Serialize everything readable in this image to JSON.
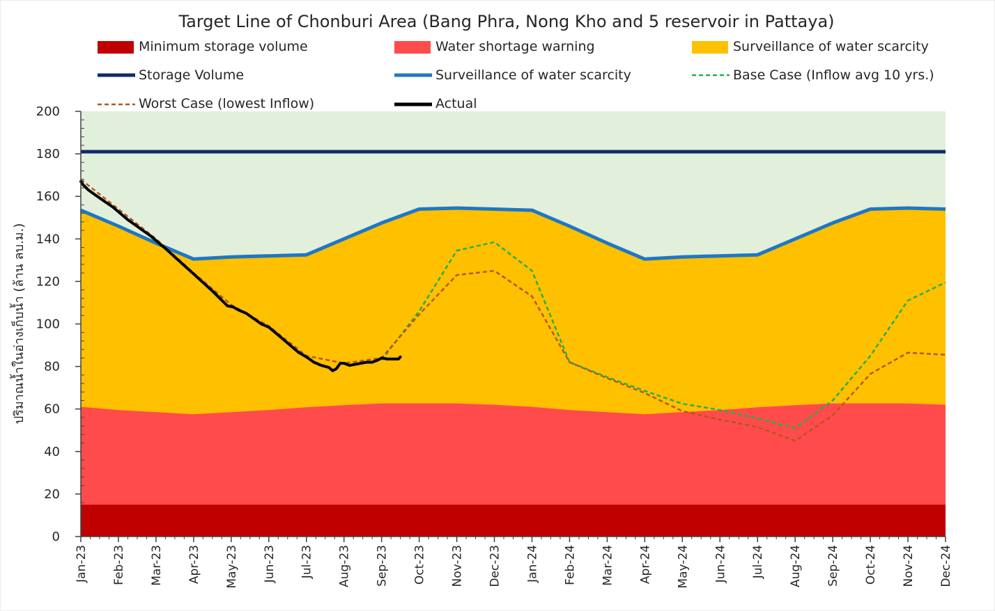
{
  "chart_data": {
    "type": "area",
    "title": "Target Line of Chonburi Area (Bang Phra, Nong Kho and 5 reservoir in Pattaya)",
    "ylabel": "ปริมาณน้ำในอ่างเก็บน้ำ (ล้าน ลบ.ม.)",
    "xlabel": "",
    "ylim": [
      0,
      200
    ],
    "yticks": [
      0,
      20,
      40,
      60,
      80,
      100,
      120,
      140,
      160,
      180,
      200
    ],
    "categories": [
      "Jan-23",
      "Feb-23",
      "Mar-23",
      "Apr-23",
      "May-23",
      "Jun-23",
      "Jul-23",
      "Aug-23",
      "Sep-23",
      "Oct-23",
      "Nov-23",
      "Dec-23",
      "Jan-24",
      "Feb-24",
      "Mar-24",
      "Apr-24",
      "May-24",
      "Jun-24",
      "Jul-24",
      "Aug-24",
      "Sep-24",
      "Oct-24",
      "Nov-24",
      "Dec-24"
    ],
    "legend_placement": "top",
    "colors": {
      "plot_background": "#E2EFDA",
      "minimum": "#C00000",
      "shortage": "#FF4B4B",
      "surveillance_area": "#FFC000",
      "storage_line": "#0D2A6B",
      "surveillance_line": "#1F77C4",
      "base_case": "#22B04A",
      "worst_case": "#B5561E",
      "actual": "#000000"
    },
    "legend": {
      "minimum": "Minimum storage volume",
      "shortage": "Water shortage warning",
      "surveillance_area": "Surveillance of water scarcity",
      "storage_line": "Storage Volume",
      "surveillance_line": "Surveillance of water scarcity",
      "base_case": "Base Case (Inflow avg 10 yrs.)",
      "worst_case": "Worst Case (lowest Inflow)",
      "actual": "Actual"
    },
    "series": [
      {
        "name": "Minimum storage volume",
        "kind": "area",
        "values": [
          15,
          15,
          15,
          15,
          15,
          15,
          15,
          15,
          15,
          15,
          15,
          15,
          15,
          15,
          15,
          15,
          15,
          15,
          15,
          15,
          15,
          15,
          15,
          15
        ]
      },
      {
        "name": "Water shortage warning",
        "kind": "area",
        "values": [
          61,
          59.5,
          58.5,
          57.5,
          58.5,
          59.5,
          60.8,
          61.8,
          62.6,
          62.6,
          62.6,
          62,
          61,
          59.5,
          58.5,
          57.5,
          58.5,
          59.5,
          60.8,
          61.8,
          62.6,
          62.6,
          62.6,
          62
        ]
      },
      {
        "name": "Surveillance of water scarcity",
        "kind": "line",
        "values": [
          153.5,
          146,
          138,
          130.5,
          131.5,
          132,
          132.5,
          140,
          147.5,
          154,
          154.5,
          154,
          153.5,
          146,
          138,
          130.5,
          131.5,
          132,
          132.5,
          140,
          147.5,
          154,
          154.5,
          154
        ]
      },
      {
        "name": "Storage Volume",
        "kind": "line",
        "values": [
          181,
          181,
          181,
          181,
          181,
          181,
          181,
          181,
          181,
          181,
          181,
          181,
          181,
          181,
          181,
          181,
          181,
          181,
          181,
          181,
          181,
          181,
          181,
          181
        ]
      },
      {
        "name": "Base Case (Inflow avg 10 yrs.)",
        "kind": "dashed",
        "values": [
          null,
          null,
          null,
          null,
          null,
          null,
          null,
          null,
          83,
          106,
          134.5,
          138.5,
          125,
          82,
          75,
          68.5,
          62.5,
          59.5,
          55.5,
          51,
          64,
          85,
          111,
          119.5
        ]
      },
      {
        "name": "Worst Case (lowest Inflow)",
        "kind": "dashed",
        "x": [
          0,
          1,
          2,
          3,
          4,
          5,
          6,
          7,
          8,
          9,
          10,
          11,
          12,
          13,
          14,
          15,
          16,
          17,
          18,
          19,
          20,
          21,
          22,
          23
        ],
        "values": [
          168,
          154,
          140,
          124,
          109,
          99,
          85,
          81.5,
          84,
          104.5,
          123,
          125,
          113,
          82,
          74.5,
          67.5,
          59,
          55,
          51.5,
          45,
          57,
          76.5,
          86.5,
          85.5
        ]
      },
      {
        "name": "Actual",
        "kind": "line",
        "x": [
          0,
          0.06,
          0.2,
          0.4,
          0.6,
          0.85,
          1.05,
          1.25,
          1.45,
          1.65,
          1.85,
          2.05,
          2.25,
          2.5,
          2.75,
          3,
          3.25,
          3.5,
          3.7,
          3.9,
          4.05,
          4.2,
          4.4,
          4.6,
          4.8,
          5,
          5.2,
          5.4,
          5.6,
          5.8,
          6,
          6.2,
          6.4,
          6.6,
          6.7,
          6.8,
          6.9,
          7,
          7.15,
          7.3,
          7.45,
          7.6,
          7.75,
          7.9,
          8,
          8.15,
          8.3,
          8.45,
          8.5
        ],
        "values": [
          167,
          165.5,
          163,
          160.5,
          158,
          155,
          152,
          149,
          146.5,
          144,
          141.5,
          138.5,
          135.5,
          131.5,
          127.5,
          123.5,
          119.5,
          115.5,
          112,
          108.5,
          108,
          106.5,
          105,
          102.5,
          100,
          98.5,
          95.5,
          92.5,
          89.5,
          86.5,
          84.5,
          82,
          80.5,
          79.5,
          78,
          79,
          81.5,
          81.5,
          80.5,
          81,
          81.5,
          82,
          82,
          83,
          84,
          83.5,
          83.5,
          83.5,
          84.5
        ]
      }
    ]
  }
}
